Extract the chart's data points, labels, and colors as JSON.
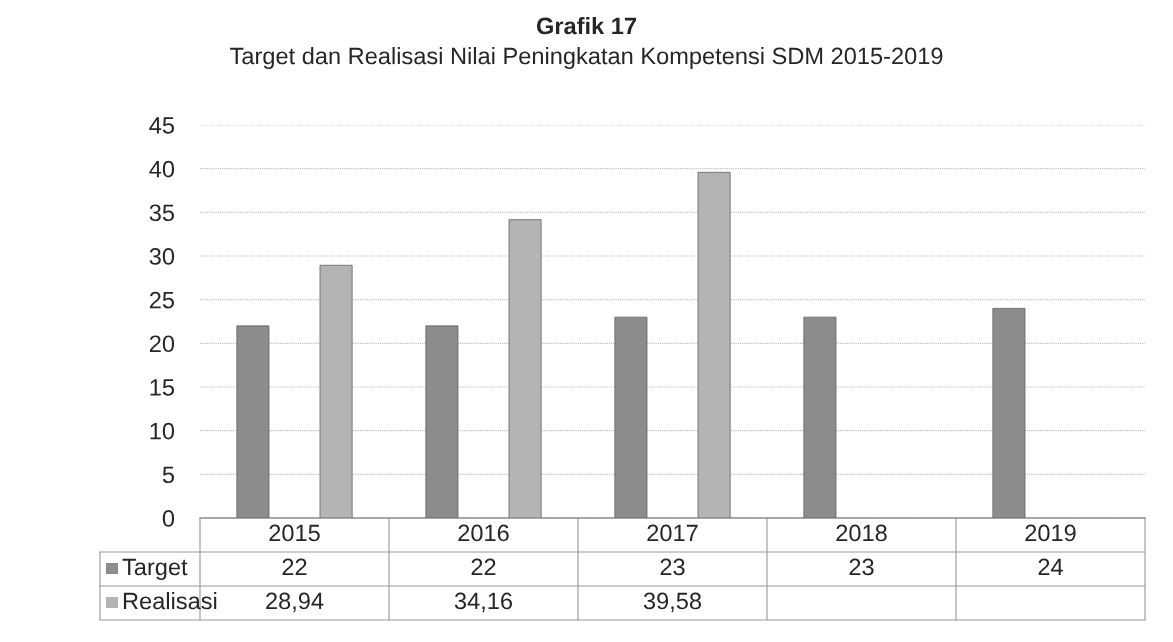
{
  "chart_data": {
    "type": "bar",
    "title": "Grafik 17",
    "subtitle": "Target dan Realisasi Nilai Peningkatan Kompetensi SDM 2015-2019",
    "categories": [
      "2015",
      "2016",
      "2017",
      "2018",
      "2019"
    ],
    "series": [
      {
        "name": "Target",
        "color": "#8c8c8c",
        "values": [
          22,
          22,
          23,
          23,
          24
        ],
        "value_labels": [
          "22",
          "22",
          "23",
          "23",
          "24"
        ]
      },
      {
        "name": "Realisasi",
        "color": "#b4b4b4",
        "values": [
          28.94,
          34.16,
          39.58,
          null,
          null
        ],
        "value_labels": [
          "28,94",
          "34,16",
          "39,58",
          null,
          null
        ]
      }
    ],
    "ylim": [
      0,
      45
    ],
    "yticks": [
      0,
      5,
      10,
      15,
      20,
      25,
      30,
      35,
      40,
      45
    ],
    "grid": "y",
    "legend": "bottom"
  }
}
